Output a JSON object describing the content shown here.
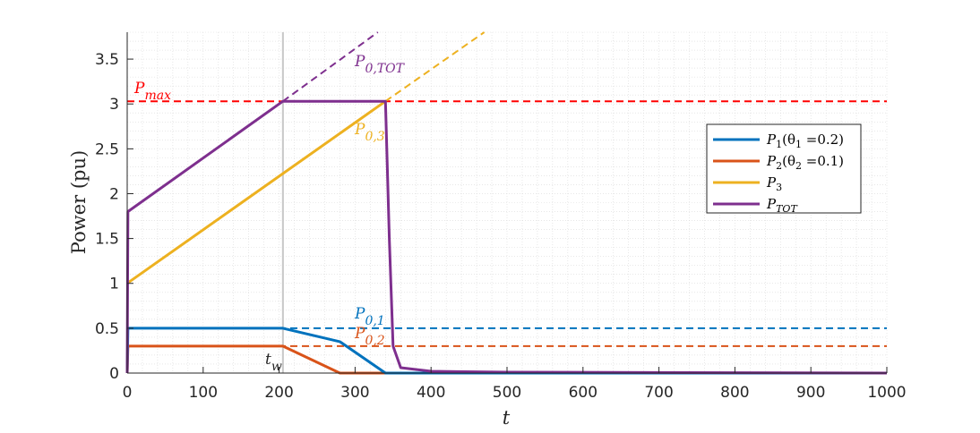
{
  "chart_data": {
    "type": "line",
    "xlabel": "t",
    "ylabel": "Power (pu)",
    "xlim": [
      0,
      1000
    ],
    "ylim": [
      0,
      3.8
    ],
    "xticks": [
      "0",
      "100",
      "200",
      "300",
      "400",
      "500",
      "600",
      "700",
      "800",
      "900",
      "1000"
    ],
    "yticks": [
      "0",
      "0.5",
      "1",
      "1.5",
      "2",
      "2.5",
      "3",
      "3.5"
    ],
    "grid": "dotted, minor",
    "legend_position": "right",
    "colors": {
      "P1": "#0072BD",
      "P2": "#D95319",
      "P3": "#EDB120",
      "PTOT": "#7E2F8E",
      "Pmax": "#FF0000",
      "tw": "#C8C8C8"
    },
    "series": [
      {
        "name": "P1(θ1 =0.2)",
        "key": "P1",
        "style": "solid",
        "points": [
          [
            0,
            0
          ],
          [
            1,
            0.5
          ],
          [
            205,
            0.5
          ],
          [
            240,
            0.43
          ],
          [
            280,
            0.35
          ],
          [
            340,
            0.0
          ],
          [
            1000,
            0.0
          ]
        ]
      },
      {
        "name": "P2(θ2 =0.1)",
        "key": "P2",
        "style": "solid",
        "points": [
          [
            0,
            0
          ],
          [
            1,
            0.3
          ],
          [
            205,
            0.3
          ],
          [
            280,
            0.0
          ],
          [
            1000,
            0.0
          ]
        ]
      },
      {
        "name": "P3",
        "key": "P3",
        "style": "solid",
        "points": [
          [
            0,
            1.0
          ],
          [
            340,
            3.03
          ]
        ]
      },
      {
        "name": "PTOT",
        "key": "PTOT",
        "style": "solid",
        "points": [
          [
            0,
            0
          ],
          [
            1,
            1.8
          ],
          [
            205,
            3.03
          ],
          [
            340,
            3.03
          ],
          [
            345,
            1.5
          ],
          [
            350,
            0.3
          ],
          [
            360,
            0.06
          ],
          [
            400,
            0.02
          ],
          [
            500,
            0.01
          ],
          [
            1000,
            0.0
          ]
        ]
      }
    ],
    "reference_lines": [
      {
        "key": "Pmax",
        "label": "P",
        "sub": "max",
        "value": 3.03
      },
      {
        "key": "P1",
        "label": "P",
        "sub": "0,1",
        "value": 0.5
      },
      {
        "key": "P2",
        "label": "P",
        "sub": "0,2",
        "value": 0.3
      }
    ],
    "extrapolations": [
      {
        "key": "PTOT",
        "label": "P",
        "sub": "0,TOT",
        "points": [
          [
            205,
            3.03
          ],
          [
            330,
            3.8
          ]
        ]
      },
      {
        "key": "P3",
        "label": "P",
        "sub": "0,3",
        "points": [
          [
            340,
            3.03
          ],
          [
            470,
            3.8
          ]
        ]
      }
    ],
    "vertical_marker": {
      "label": "t",
      "sub": "w",
      "x": 205
    },
    "legend": [
      {
        "key": "P1",
        "base": "P",
        "sub": "1",
        "rest": "(θ",
        "sub2": "1",
        "rest2": " =0.2)"
      },
      {
        "key": "P2",
        "base": "P",
        "sub": "2",
        "rest": "(θ",
        "sub2": "2",
        "rest2": " =0.1)"
      },
      {
        "key": "P3",
        "base": "P",
        "sub": "3",
        "rest": "",
        "sub2": "",
        "rest2": ""
      },
      {
        "key": "PTOT",
        "base": "P",
        "sub": "TOT",
        "rest": "",
        "sub2": "",
        "rest2": ""
      }
    ]
  }
}
